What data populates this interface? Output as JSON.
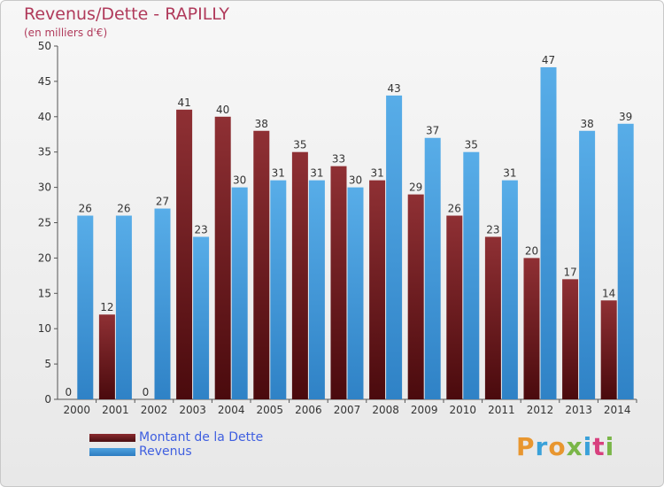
{
  "header": {
    "title": "Revenus/Dette - RAPILLY",
    "subtitle": "(en milliers d'€)"
  },
  "legend": {
    "debt_label": "Montant de la Dette",
    "revenue_label": "Revenus"
  },
  "logo": {
    "text": "Proxiti",
    "letters": [
      "P",
      "r",
      "o",
      "x",
      "i",
      "t",
      "i"
    ]
  },
  "colors": {
    "debt": "#8b2a2e",
    "revenue": "#4fa3e0",
    "title": "#b03a5b",
    "legend_text": "#3f5fe0"
  },
  "chart_data": {
    "type": "bar",
    "title": "Revenus/Dette - RAPILLY",
    "subtitle": "(en milliers d'€)",
    "categories": [
      "2000",
      "2001",
      "2002",
      "2003",
      "2004",
      "2005",
      "2006",
      "2007",
      "2008",
      "2009",
      "2010",
      "2011",
      "2012",
      "2013",
      "2014"
    ],
    "series": [
      {
        "name": "Montant de la Dette",
        "values": [
          0,
          12,
          0,
          41,
          40,
          38,
          35,
          33,
          31,
          29,
          26,
          23,
          20,
          17,
          14
        ]
      },
      {
        "name": "Revenus",
        "values": [
          26,
          26,
          27,
          23,
          30,
          31,
          31,
          30,
          43,
          37,
          35,
          31,
          47,
          38,
          39
        ]
      }
    ],
    "ylim": [
      0,
      50
    ],
    "yticks": [
      0,
      5,
      10,
      15,
      20,
      25,
      30,
      35,
      40,
      45,
      50
    ],
    "grid": false,
    "legend_position": "bottom-left"
  }
}
